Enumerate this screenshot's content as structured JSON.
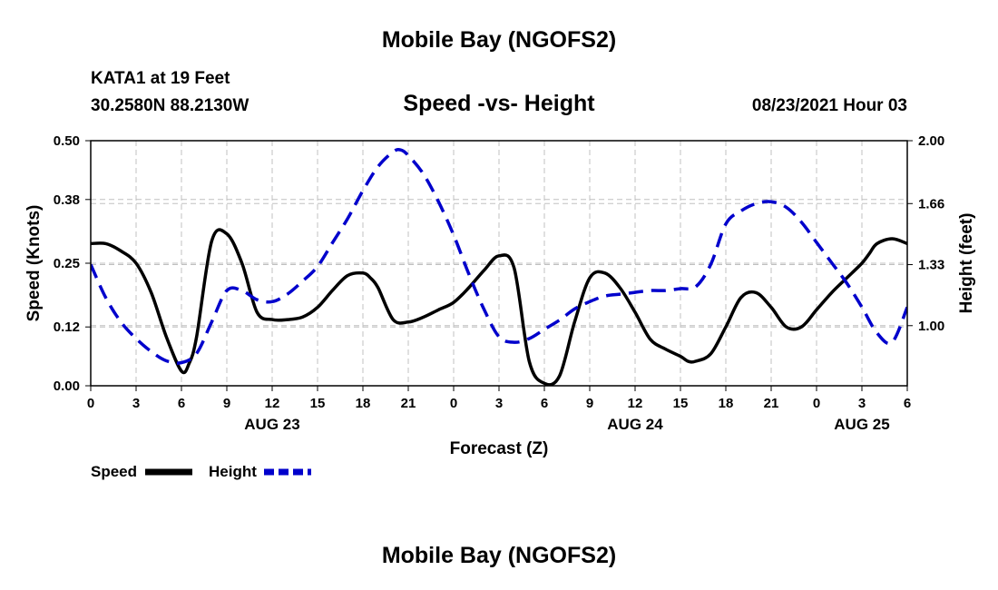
{
  "header": {
    "title_top": "Mobile Bay (NGOFS2)",
    "station": "KATA1 at 19 Feet",
    "coords": "30.2580N  88.2130W",
    "subtitle": "Speed -vs- Height",
    "datetime": "08/23/2021 Hour 03",
    "title_bottom": "Mobile Bay (NGOFS2)"
  },
  "chart_data": {
    "type": "line",
    "title": "Speed -vs- Height",
    "xlabel": "Forecast (Z)",
    "ylabel_left": "Speed (Knots)",
    "ylabel_right": "Height (feet)",
    "x_tick_labels": [
      "0",
      "3",
      "6",
      "9",
      "12",
      "15",
      "18",
      "21",
      "0",
      "3",
      "6",
      "9",
      "12",
      "15",
      "18",
      "21",
      "0",
      "3",
      "6"
    ],
    "date_labels": [
      {
        "label": "AUG 23",
        "hour": 12
      },
      {
        "label": "AUG 24",
        "hour": 36
      },
      {
        "label": "AUG 25",
        "hour": 51
      }
    ],
    "x_range_hours": [
      0,
      54
    ],
    "y_left": {
      "ticks": [
        "0.00",
        "0.12",
        "0.25",
        "0.38",
        "0.50"
      ],
      "ylim": [
        0,
        0.5
      ]
    },
    "y_right": {
      "ticks": [
        "1.00",
        "1.33",
        "1.66",
        "2.00"
      ],
      "ylim": [
        0.675,
        2.0
      ]
    },
    "grid": true,
    "legend_position": "bottom-left",
    "series": [
      {
        "name": "Speed",
        "axis": "left",
        "color": "#000000",
        "style": "solid",
        "x": [
          0,
          1,
          2,
          3,
          4,
          5,
          6,
          6.5,
          7,
          8,
          9,
          10,
          11,
          12,
          13,
          14,
          15,
          16,
          17,
          18,
          18.5,
          19,
          20,
          21,
          22,
          23,
          24,
          25,
          26,
          27,
          28,
          29,
          30,
          31,
          32,
          33,
          34,
          35,
          36,
          37,
          38,
          39,
          39.5,
          40,
          41,
          42,
          43,
          44,
          45,
          46,
          47,
          48,
          49,
          50,
          51,
          51.5,
          52,
          53,
          54
        ],
        "values": [
          0.29,
          0.29,
          0.275,
          0.25,
          0.19,
          0.1,
          0.03,
          0.045,
          0.1,
          0.295,
          0.31,
          0.25,
          0.15,
          0.135,
          0.135,
          0.14,
          0.16,
          0.195,
          0.225,
          0.23,
          0.22,
          0.2,
          0.135,
          0.13,
          0.14,
          0.155,
          0.17,
          0.2,
          0.235,
          0.265,
          0.24,
          0.05,
          0.005,
          0.02,
          0.13,
          0.22,
          0.23,
          0.2,
          0.15,
          0.095,
          0.075,
          0.06,
          0.05,
          0.05,
          0.065,
          0.12,
          0.18,
          0.19,
          0.16,
          0.12,
          0.12,
          0.155,
          0.19,
          0.22,
          0.25,
          0.27,
          0.29,
          0.3,
          0.29
        ]
      },
      {
        "name": "Height",
        "axis": "right",
        "color": "#0000cc",
        "style": "dashed",
        "x": [
          0,
          1,
          2,
          3,
          4,
          5,
          6,
          7,
          8,
          9,
          10,
          11,
          12,
          13,
          14,
          15,
          16,
          17,
          18,
          19,
          20,
          20.5,
          21,
          22,
          23,
          24,
          25,
          26,
          27,
          28,
          29,
          30,
          31,
          32,
          33,
          34,
          35,
          36,
          37,
          38,
          39,
          40,
          41,
          42,
          43,
          44,
          45,
          46,
          47,
          48,
          49,
          50,
          51,
          52,
          53,
          54
        ],
        "values": [
          1.33,
          1.15,
          1.02,
          0.93,
          0.86,
          0.81,
          0.8,
          0.85,
          1.02,
          1.19,
          1.19,
          1.14,
          1.13,
          1.17,
          1.24,
          1.32,
          1.45,
          1.58,
          1.73,
          1.86,
          1.94,
          1.95,
          1.92,
          1.82,
          1.67,
          1.49,
          1.28,
          1.09,
          0.94,
          0.91,
          0.93,
          0.98,
          1.03,
          1.09,
          1.13,
          1.16,
          1.17,
          1.18,
          1.19,
          1.19,
          1.2,
          1.21,
          1.33,
          1.55,
          1.62,
          1.66,
          1.67,
          1.64,
          1.56,
          1.45,
          1.34,
          1.23,
          1.1,
          0.96,
          0.91,
          1.1
        ]
      }
    ]
  }
}
